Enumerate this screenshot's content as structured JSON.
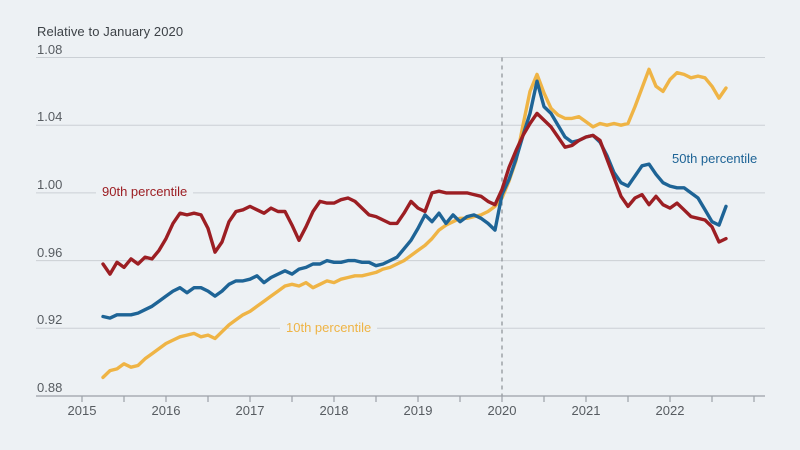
{
  "title": "Relative to January 2020",
  "colors": {
    "background": "#EDF1F4",
    "gridline": "#CBD0D5",
    "axis": "#9BA1A7",
    "dashed_line": "#8A8F94",
    "title_text": "#3D4247",
    "tick_text": "#575C61"
  },
  "chart_data": {
    "type": "line",
    "title": "Relative to January 2020",
    "x_start": "2015-04",
    "frequency": "monthly",
    "ylim": [
      0.88,
      1.08
    ],
    "grid": "horizontal",
    "x_tick_years": [
      2015,
      2016,
      2017,
      2018,
      2019,
      2020,
      2021,
      2022
    ],
    "y_ticks": [
      {
        "value": 1.08,
        "label": "1.08"
      },
      {
        "value": 1.04,
        "label": "1.04"
      },
      {
        "value": 1.0,
        "label": "1.00"
      },
      {
        "value": 0.96,
        "label": "0.96"
      },
      {
        "value": 0.92,
        "label": "0.92"
      },
      {
        "value": 0.88,
        "label": "0.88"
      }
    ],
    "reference_line": {
      "x_year": 2020,
      "style": "dashed"
    },
    "series": [
      {
        "id": "10th-percentile",
        "name": "10th percentile",
        "color": "#EFB445",
        "values": [
          0.891,
          0.895,
          0.896,
          0.899,
          0.897,
          0.898,
          0.902,
          0.905,
          0.908,
          0.911,
          0.913,
          0.915,
          0.916,
          0.917,
          0.915,
          0.916,
          0.914,
          0.918,
          0.922,
          0.925,
          0.928,
          0.93,
          0.933,
          0.936,
          0.939,
          0.942,
          0.945,
          0.946,
          0.945,
          0.947,
          0.944,
          0.946,
          0.948,
          0.947,
          0.949,
          0.95,
          0.951,
          0.951,
          0.952,
          0.953,
          0.955,
          0.956,
          0.958,
          0.96,
          0.963,
          0.966,
          0.969,
          0.973,
          0.978,
          0.981,
          0.983,
          0.985,
          0.985,
          0.986,
          0.987,
          0.989,
          0.992,
          0.997,
          1.007,
          1.019,
          1.04,
          1.06,
          1.07,
          1.059,
          1.05,
          1.046,
          1.044,
          1.044,
          1.045,
          1.042,
          1.039,
          1.041,
          1.04,
          1.041,
          1.04,
          1.041,
          1.051,
          1.062,
          1.073,
          1.063,
          1.06,
          1.067,
          1.071,
          1.07,
          1.068,
          1.069,
          1.068,
          1.063,
          1.056,
          1.062
        ]
      },
      {
        "id": "50th-percentile",
        "name": "50th percentile",
        "color": "#1E6496",
        "values": [
          0.927,
          0.926,
          0.928,
          0.928,
          0.928,
          0.929,
          0.931,
          0.933,
          0.936,
          0.939,
          0.942,
          0.944,
          0.941,
          0.944,
          0.944,
          0.942,
          0.939,
          0.942,
          0.946,
          0.948,
          0.948,
          0.949,
          0.951,
          0.947,
          0.95,
          0.952,
          0.954,
          0.952,
          0.955,
          0.956,
          0.958,
          0.958,
          0.96,
          0.959,
          0.959,
          0.96,
          0.96,
          0.959,
          0.959,
          0.957,
          0.958,
          0.96,
          0.962,
          0.967,
          0.972,
          0.979,
          0.987,
          0.983,
          0.988,
          0.982,
          0.987,
          0.983,
          0.986,
          0.987,
          0.985,
          0.982,
          0.978,
          0.999,
          1.008,
          1.02,
          1.034,
          1.047,
          1.066,
          1.051,
          1.047,
          1.04,
          1.033,
          1.03,
          1.031,
          1.033,
          1.034,
          1.03,
          1.022,
          1.012,
          1.006,
          1.004,
          1.01,
          1.016,
          1.017,
          1.011,
          1.006,
          1.004,
          1.003,
          1.003,
          1.0,
          0.997,
          0.99,
          0.983,
          0.981,
          0.992
        ]
      },
      {
        "id": "90th-percentile",
        "name": "90th percentile",
        "color": "#9C1E23",
        "values": [
          0.958,
          0.952,
          0.959,
          0.956,
          0.961,
          0.958,
          0.962,
          0.961,
          0.966,
          0.973,
          0.982,
          0.988,
          0.987,
          0.988,
          0.987,
          0.979,
          0.965,
          0.971,
          0.983,
          0.989,
          0.99,
          0.992,
          0.99,
          0.988,
          0.991,
          0.989,
          0.989,
          0.981,
          0.972,
          0.98,
          0.989,
          0.995,
          0.994,
          0.994,
          0.996,
          0.997,
          0.995,
          0.991,
          0.987,
          0.986,
          0.984,
          0.982,
          0.982,
          0.988,
          0.995,
          0.991,
          0.989,
          1.0,
          1.001,
          1.0,
          1.0,
          1.0,
          1.0,
          0.999,
          0.998,
          0.995,
          0.993,
          1.002,
          1.015,
          1.025,
          1.034,
          1.041,
          1.047,
          1.043,
          1.039,
          1.033,
          1.027,
          1.028,
          1.031,
          1.033,
          1.034,
          1.031,
          1.02,
          1.009,
          0.998,
          0.992,
          0.997,
          0.999,
          0.993,
          0.998,
          0.993,
          0.991,
          0.994,
          0.99,
          0.986,
          0.985,
          0.984,
          0.98,
          0.971,
          0.973
        ]
      }
    ]
  }
}
